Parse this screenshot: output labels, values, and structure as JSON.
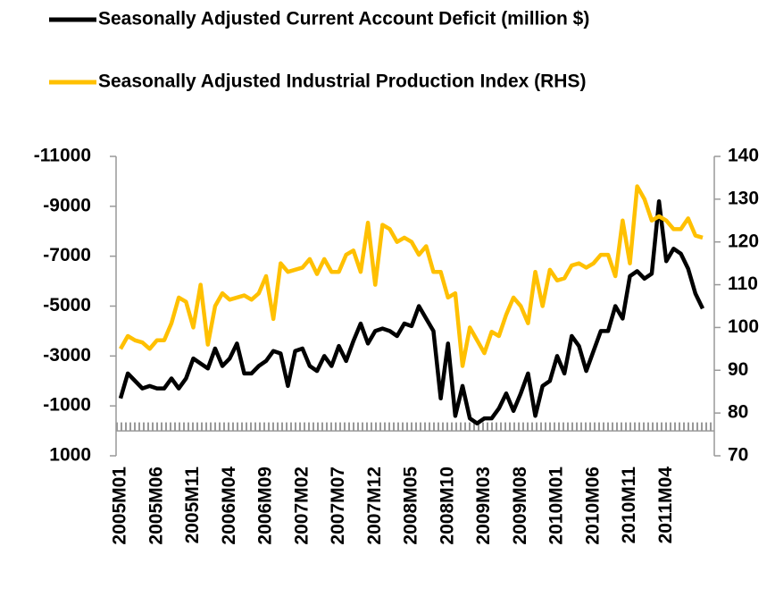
{
  "chart_data": {
    "type": "line",
    "categories": [
      "2005M01",
      null,
      null,
      null,
      null,
      "2005M06",
      null,
      null,
      null,
      null,
      "2005M11",
      null,
      null,
      null,
      null,
      "2006M04",
      null,
      null,
      null,
      null,
      "2006M09",
      null,
      null,
      null,
      null,
      "2007M02",
      null,
      null,
      null,
      null,
      "2007M07",
      null,
      null,
      null,
      null,
      "2007M12",
      null,
      null,
      null,
      null,
      "2008M05",
      null,
      null,
      null,
      null,
      "2008M10",
      null,
      null,
      null,
      null,
      "2009M03",
      null,
      null,
      null,
      null,
      "2009M08",
      null,
      null,
      null,
      null,
      "2010M01",
      null,
      null,
      null,
      null,
      "2010M06",
      null,
      null,
      null,
      null,
      "2010M11",
      null,
      null,
      null,
      null,
      "2011M04",
      null,
      null,
      null,
      null,
      null
    ],
    "series": [
      {
        "name": "Seasonally Adjusted Current Account Deficit (million $)",
        "color": "#000000",
        "values": [
          -1300,
          -2300,
          -2000,
          -1700,
          -1800,
          -1700,
          -1700,
          -2100,
          -1700,
          -2100,
          -2900,
          -2700,
          -2500,
          -3300,
          -2600,
          -2900,
          -3500,
          -2300,
          -2300,
          -2600,
          -2800,
          -3200,
          -3100,
          -1800,
          -3200,
          -3300,
          -2600,
          -2400,
          -3000,
          -2600,
          -3400,
          -2800,
          -3600,
          -4300,
          -3500,
          -4000,
          -4100,
          -4000,
          -3800,
          -4300,
          -4200,
          -5000,
          -4500,
          -4000,
          -1300,
          -3500,
          -600,
          -1800,
          -500,
          -300,
          -500,
          -500,
          -900,
          -1500,
          -800,
          -1500,
          -2300,
          -600,
          -1800,
          -2000,
          -3000,
          -2300,
          -3800,
          -3400,
          -2400,
          -3200,
          -4000,
          -4000,
          -5000,
          -4500,
          -6200,
          -6400,
          -6100,
          -6300,
          -9200,
          -6800,
          -7300,
          -7100,
          -6500,
          -5500,
          -4900
        ]
      },
      {
        "name": "Seasonally Adjusted Industrial Production Index  (RHS)",
        "color": "#ffc000",
        "axis": "y2",
        "values": [
          95,
          98,
          97,
          96.5,
          95,
          97,
          97,
          101,
          107,
          106,
          100,
          110,
          96,
          105,
          108,
          106.5,
          107,
          107.5,
          106.5,
          108,
          112,
          102,
          115,
          113,
          113.5,
          114,
          116,
          112.5,
          116,
          113,
          113,
          117,
          118,
          113,
          124.5,
          110,
          124,
          123,
          120,
          121,
          120,
          117,
          119,
          113,
          113,
          107,
          108,
          91,
          100,
          97,
          94,
          99,
          98,
          103,
          107,
          105,
          101,
          113,
          105,
          113.5,
          111,
          111.5,
          114.5,
          115,
          114,
          115,
          117,
          117,
          112,
          125,
          115,
          133,
          130,
          125,
          126,
          125,
          123,
          123,
          125.5,
          121.5,
          121
        ]
      }
    ],
    "ylim": [
      1000,
      -11000
    ],
    "yticks": [
      1000,
      -1000,
      -3000,
      -5000,
      -7000,
      -9000,
      -11000
    ],
    "y2lim": [
      70,
      140
    ],
    "y2ticks": [
      70,
      80,
      90,
      100,
      110,
      120,
      130,
      140
    ]
  }
}
